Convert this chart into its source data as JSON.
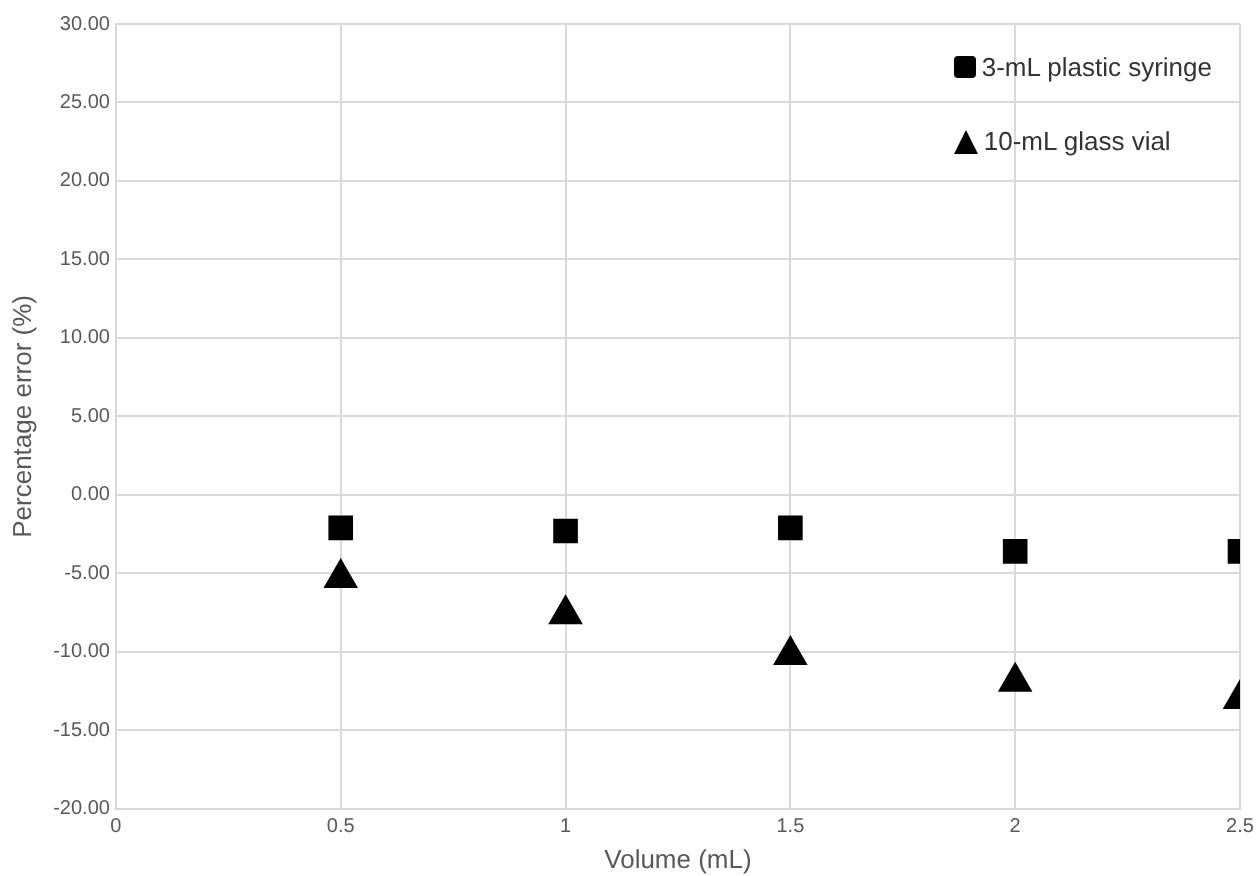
{
  "chart_data": {
    "type": "scatter",
    "xlabel": "Volume (mL)",
    "ylabel": "Percentage error (%)",
    "x": [
      0.5,
      1,
      1.5,
      2,
      2.5
    ],
    "series": [
      {
        "name": "3-mL plastic syringe",
        "color": "#000000",
        "marker": "square",
        "values": [
          -2.1,
          -2.3,
          -2.1,
          -3.6,
          -3.6
        ]
      },
      {
        "name": "10-mL glass vial",
        "color": "#000000",
        "marker": "triangle",
        "values": [
          -5.3,
          -7.6,
          -10.2,
          -11.9,
          -13.0
        ]
      }
    ],
    "xlim": [
      0,
      2.5
    ],
    "xticks": [
      0,
      0.5,
      1,
      1.5,
      2,
      2.5
    ],
    "ylim": [
      -20,
      30
    ],
    "yticks": [
      {
        "value": -20,
        "label": "-20.00"
      },
      {
        "value": -15,
        "label": "-15.00"
      },
      {
        "value": -10,
        "label": "-10.00"
      },
      {
        "value": -5,
        "label": "-5.00"
      },
      {
        "value": 0,
        "label": "0.00"
      },
      {
        "value": 5,
        "label": "5.00"
      },
      {
        "value": 10,
        "label": "10.00"
      },
      {
        "value": 15,
        "label": "15.00"
      },
      {
        "value": 20,
        "label": "20.00"
      },
      {
        "value": 25,
        "label": "25.00"
      },
      {
        "value": 30,
        "label": "30.00"
      }
    ],
    "grid": true,
    "legend": "top right"
  }
}
